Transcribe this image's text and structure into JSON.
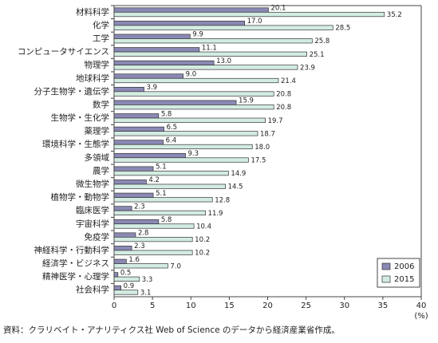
{
  "chart_data": {
    "type": "hbar",
    "categories": [
      "材料科学",
      "化学",
      "工学",
      "コンピュータサイエンス",
      "物理学",
      "地球科学",
      "分子生物学・遺伝学",
      "数学",
      "生物学・生化学",
      "薬理学",
      "環境科学・生態学",
      "多領域",
      "農学",
      "微生物学",
      "植物学・動物学",
      "臨床医学",
      "宇宙科学",
      "免疫学",
      "神経科学・行動科学",
      "経済学・ビジネス",
      "精神医学・心理学",
      "社会科学"
    ],
    "series": [
      {
        "name": "2006",
        "color": "#8a89b5",
        "values": [
          20.1,
          17.0,
          9.9,
          11.1,
          13.0,
          9.0,
          3.9,
          15.9,
          5.8,
          6.5,
          6.4,
          9.3,
          5.1,
          4.2,
          5.1,
          2.3,
          5.8,
          2.8,
          2.3,
          1.6,
          0.5,
          0.9
        ],
        "value_labels": [
          "20.1",
          "17.0",
          "9.9",
          "11.1",
          "13.0",
          "9.0",
          "3.9",
          "15.9",
          "5.8",
          "6.5",
          "6.4",
          "9.3",
          "5.1",
          "4.2",
          "5.1",
          "2.3",
          "5.8",
          "2.8",
          "2.3",
          "1.6",
          "0.5",
          "0.9"
        ]
      },
      {
        "name": "2015",
        "color": "#d3ece2",
        "values": [
          35.2,
          28.5,
          25.8,
          25.1,
          23.9,
          21.4,
          20.8,
          20.8,
          19.7,
          18.7,
          18.0,
          17.5,
          14.9,
          14.5,
          12.8,
          11.9,
          10.4,
          10.2,
          10.2,
          7.0,
          3.3,
          3.1
        ],
        "value_labels": [
          "35.2",
          "28.5",
          "25.8",
          "25.1",
          "23.9",
          "21.4",
          "20.8",
          "20.8",
          "19.7",
          "18.7",
          "18.0",
          "17.5",
          "14.9",
          "14.5",
          "12.8",
          "11.9",
          "10.4",
          "10.2",
          "10.2",
          "7.0",
          "3.3",
          "3.1"
        ]
      }
    ],
    "xlim": [
      0,
      40
    ],
    "xticks": [
      0,
      5,
      10,
      15,
      20,
      25,
      30,
      35,
      40
    ],
    "x_label": "(%)",
    "grid": false,
    "legend": "lower right",
    "source": "資料：クラリベイト・アナリティクス社 Web of Science のデータから経済産業省作成。"
  }
}
